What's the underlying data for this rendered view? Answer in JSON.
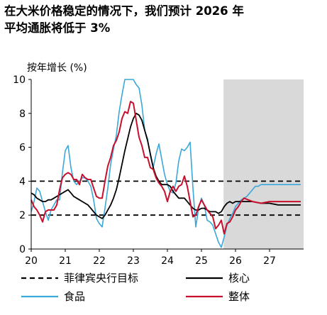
{
  "title_lines": [
    "在大米价格稳定的情况下，我们预计 2026 年",
    "平均通胀将低于 3%"
  ],
  "chart_data": {
    "type": "line",
    "ylabel": "按年增长 (%)",
    "xlabel": "",
    "ylim": [
      0,
      10
    ],
    "yticks": [
      0,
      2,
      4,
      6,
      8,
      10
    ],
    "xlim": [
      20,
      28
    ],
    "xticks": [
      {
        "value": 20,
        "label": "20"
      },
      {
        "value": 21,
        "label": "21"
      },
      {
        "value": 22,
        "label": "22"
      },
      {
        "value": 23,
        "label": "23"
      },
      {
        "value": 24,
        "label": "24"
      },
      {
        "value": 25,
        "label": "25"
      },
      {
        "value": 26,
        "label": "26"
      },
      {
        "value": 27,
        "label": "27"
      }
    ],
    "forecast_region": {
      "start": 25.65,
      "end": 28
    },
    "reference_lines": [
      {
        "name": "菲律宾央行目标",
        "values": [
          2,
          4
        ],
        "color": "#000000",
        "dashed": true
      }
    ],
    "series": [
      {
        "name": "食品",
        "color": "#3aa8d8",
        "width": 1.6,
        "x": [
          20.0,
          20.083,
          20.167,
          20.25,
          20.333,
          20.417,
          20.5,
          20.583,
          20.667,
          20.75,
          20.833,
          20.917,
          21.0,
          21.083,
          21.167,
          21.25,
          21.333,
          21.417,
          21.5,
          21.583,
          21.667,
          21.75,
          21.833,
          21.917,
          22.0,
          22.083,
          22.167,
          22.25,
          22.333,
          22.417,
          22.5,
          22.583,
          22.667,
          22.75,
          22.833,
          22.917,
          23.0,
          23.083,
          23.167,
          23.25,
          23.333,
          23.417,
          23.5,
          23.583,
          23.667,
          23.75,
          23.833,
          23.917,
          24.0,
          24.083,
          24.167,
          24.25,
          24.333,
          24.417,
          24.5,
          24.583,
          24.667,
          24.75,
          24.833,
          24.917,
          25.0,
          25.083,
          25.167,
          25.25,
          25.333,
          25.417,
          25.5,
          25.583,
          25.667,
          25.75,
          25.833,
          25.917,
          26.0,
          26.083,
          26.167,
          26.25,
          26.333,
          26.417,
          26.5,
          26.583,
          26.667,
          26.75,
          26.833,
          26.917,
          27.0,
          27.25,
          27.5,
          27.75,
          27.917
        ],
        "values": [
          2.2,
          2.8,
          3.6,
          3.4,
          2.8,
          2.2,
          1.7,
          2.3,
          2.6,
          2.9,
          2.9,
          4.5,
          5.8,
          6.1,
          4.8,
          4.0,
          3.8,
          4.0,
          4.2,
          4.2,
          4.0,
          3.7,
          2.9,
          1.8,
          1.5,
          1.3,
          2.4,
          3.6,
          5.0,
          5.9,
          6.7,
          8.1,
          9.1,
          10.0,
          10.0,
          10.0,
          10.0,
          9.7,
          9.5,
          8.5,
          7.0,
          6.5,
          5.5,
          4.8,
          5.6,
          6.2,
          5.3,
          4.4,
          3.8,
          3.4,
          3.3,
          3.9,
          5.2,
          5.9,
          5.8,
          6.0,
          6.3,
          3.6,
          1.3,
          2.4,
          3.0,
          2.6,
          1.7,
          1.6,
          1.4,
          0.9,
          0.4,
          0.1,
          0.7,
          1.4,
          1.8,
          2.1,
          2.5,
          2.7,
          2.9,
          3.0,
          3.1,
          3.3,
          3.5,
          3.7,
          3.7,
          3.8,
          3.8,
          3.8,
          3.8,
          3.8,
          3.8,
          3.8,
          3.8
        ]
      },
      {
        "name": "核心",
        "color": "#000000",
        "width": 1.8,
        "x": [
          20.0,
          20.083,
          20.167,
          20.25,
          20.333,
          20.417,
          20.5,
          20.583,
          20.667,
          20.75,
          20.833,
          20.917,
          21.0,
          21.083,
          21.167,
          21.25,
          21.333,
          21.417,
          21.5,
          21.583,
          21.667,
          21.75,
          21.833,
          21.917,
          22.0,
          22.083,
          22.167,
          22.25,
          22.333,
          22.417,
          22.5,
          22.583,
          22.667,
          22.75,
          22.833,
          22.917,
          23.0,
          23.083,
          23.167,
          23.25,
          23.333,
          23.417,
          23.5,
          23.583,
          23.667,
          23.75,
          23.833,
          23.917,
          24.0,
          24.083,
          24.167,
          24.25,
          24.333,
          24.417,
          24.5,
          24.583,
          24.667,
          24.75,
          24.833,
          24.917,
          25.0,
          25.083,
          25.167,
          25.25,
          25.333,
          25.417,
          25.5,
          25.583,
          25.667,
          25.75,
          25.833,
          25.917,
          26.0,
          26.25,
          26.5,
          26.75,
          27.0,
          27.25,
          27.5,
          27.75,
          27.917
        ],
        "values": [
          3.3,
          3.2,
          3.0,
          2.9,
          2.8,
          2.8,
          2.9,
          2.9,
          3.0,
          3.1,
          3.2,
          3.3,
          3.4,
          3.5,
          3.3,
          3.1,
          3.0,
          2.9,
          2.8,
          2.7,
          2.6,
          2.4,
          2.2,
          2.0,
          1.9,
          1.8,
          2.0,
          2.3,
          2.6,
          3.0,
          3.5,
          4.2,
          5.0,
          5.8,
          6.5,
          7.2,
          7.7,
          8.0,
          7.9,
          7.6,
          7.0,
          6.4,
          5.6,
          4.8,
          4.3,
          4.0,
          3.8,
          3.8,
          3.8,
          3.7,
          3.4,
          3.2,
          3.0,
          3.0,
          3.0,
          2.8,
          2.6,
          2.4,
          2.3,
          2.3,
          2.4,
          2.4,
          2.3,
          2.2,
          2.2,
          2.2,
          2.1,
          2.2,
          2.5,
          2.7,
          2.8,
          2.7,
          2.8,
          2.8,
          2.8,
          2.7,
          2.7,
          2.6,
          2.6,
          2.6,
          2.6
        ]
      },
      {
        "name": "整体",
        "color": "#c8102e",
        "width": 2.0,
        "x": [
          20.0,
          20.083,
          20.167,
          20.25,
          20.333,
          20.417,
          20.5,
          20.583,
          20.667,
          20.75,
          20.833,
          20.917,
          21.0,
          21.083,
          21.167,
          21.25,
          21.333,
          21.417,
          21.5,
          21.583,
          21.667,
          21.75,
          21.833,
          21.917,
          22.0,
          22.083,
          22.167,
          22.25,
          22.333,
          22.417,
          22.5,
          22.583,
          22.667,
          22.75,
          22.833,
          22.917,
          23.0,
          23.083,
          23.167,
          23.25,
          23.333,
          23.417,
          23.5,
          23.583,
          23.667,
          23.75,
          23.833,
          23.917,
          24.0,
          24.083,
          24.167,
          24.25,
          24.333,
          24.417,
          24.5,
          24.583,
          24.667,
          24.75,
          24.833,
          24.917,
          25.0,
          25.083,
          25.167,
          25.25,
          25.333,
          25.417,
          25.5,
          25.583,
          25.667,
          25.75,
          25.833,
          25.917,
          26.0,
          26.083,
          26.167,
          26.25,
          26.5,
          26.75,
          27.0,
          27.25,
          27.5,
          27.75,
          27.917
        ],
        "values": [
          2.9,
          2.5,
          2.3,
          2.0,
          1.6,
          2.2,
          2.3,
          2.3,
          2.3,
          2.6,
          3.5,
          4.2,
          4.4,
          4.5,
          4.4,
          4.1,
          4.1,
          3.8,
          4.4,
          4.2,
          4.1,
          4.1,
          3.6,
          3.1,
          3.0,
          3.0,
          4.0,
          4.9,
          5.4,
          6.1,
          6.4,
          6.9,
          7.7,
          8.1,
          8.0,
          8.7,
          8.6,
          7.6,
          6.6,
          6.1,
          5.4,
          5.4,
          4.8,
          4.7,
          4.2,
          3.9,
          3.7,
          3.4,
          2.8,
          3.4,
          3.7,
          3.4,
          3.7,
          3.8,
          4.3,
          3.7,
          2.8,
          1.9,
          2.0,
          2.5,
          2.9,
          2.6,
          2.3,
          2.1,
          1.9,
          1.2,
          1.4,
          1.7,
          0.9,
          1.5,
          1.6,
          1.9,
          2.3,
          2.5,
          2.8,
          3.0,
          2.8,
          2.7,
          2.8,
          2.8,
          2.8,
          2.8,
          2.8
        ]
      }
    ],
    "legend": {
      "placement": "bottom",
      "items": [
        {
          "label": "菲律宾央行目标",
          "color": "#000000",
          "style": "dashed"
        },
        {
          "label": "核心",
          "color": "#000000",
          "style": "solid"
        },
        {
          "label": "食品",
          "color": "#3aa8d8",
          "style": "solid"
        },
        {
          "label": "整体",
          "color": "#c8102e",
          "style": "solid"
        }
      ]
    }
  }
}
